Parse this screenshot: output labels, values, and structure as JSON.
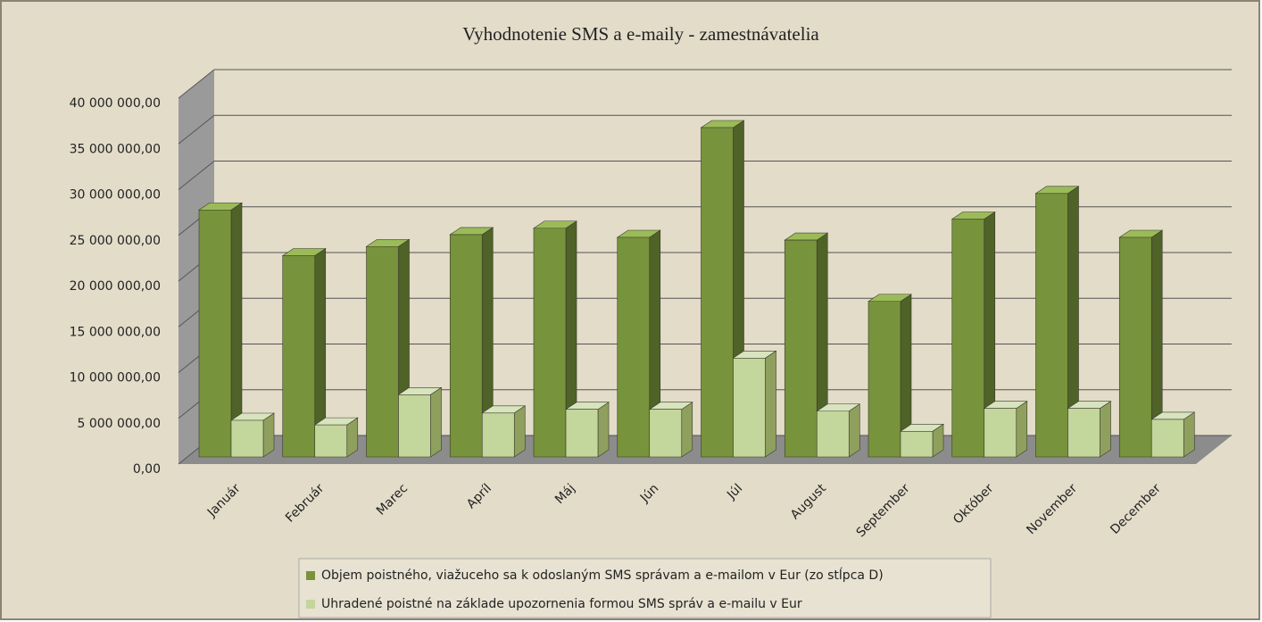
{
  "chart_data": {
    "type": "bar3d",
    "title": "Vyhodnotenie SMS a e-maily - zamestnávatelia",
    "categories": [
      "Január",
      "Február",
      "Marec",
      "Apríl",
      "Máj",
      "Jún",
      "Júl",
      "August",
      "September",
      "Október",
      "November",
      "December"
    ],
    "series": [
      {
        "name": "Objem poistného, viažuceho sa k odoslaným SMS správam a e-mailom v Eur (zo stĺpca D)",
        "color": "#77933c",
        "values": [
          27000000,
          22000000,
          23000000,
          24300000,
          25000000,
          24000000,
          36000000,
          23700000,
          17000000,
          26000000,
          28800000,
          24000000
        ]
      },
      {
        "name": "Uhradené poistné na základe upozornenia formou SMS správ a e-mailu v Eur",
        "color": "#c3d69b",
        "values": [
          4000000,
          3500000,
          6800000,
          4800000,
          5200000,
          5200000,
          10800000,
          5000000,
          2800000,
          5300000,
          5300000,
          4100000
        ]
      }
    ],
    "ylim": [
      0,
      40000000
    ],
    "yticks": [
      {
        "value": 0,
        "label": "0,00"
      },
      {
        "value": 5000000,
        "label": "5 000 000,00"
      },
      {
        "value": 10000000,
        "label": "10 000 000,00"
      },
      {
        "value": 15000000,
        "label": "15 000 000,00"
      },
      {
        "value": 20000000,
        "label": "20 000 000,00"
      },
      {
        "value": 25000000,
        "label": "25 000 000,00"
      },
      {
        "value": 30000000,
        "label": "30 000 000,00"
      },
      {
        "value": 35000000,
        "label": "35 000 000,00"
      },
      {
        "value": 40000000,
        "label": "40 000 000,00"
      }
    ],
    "grid": true,
    "legend": "bottom"
  }
}
